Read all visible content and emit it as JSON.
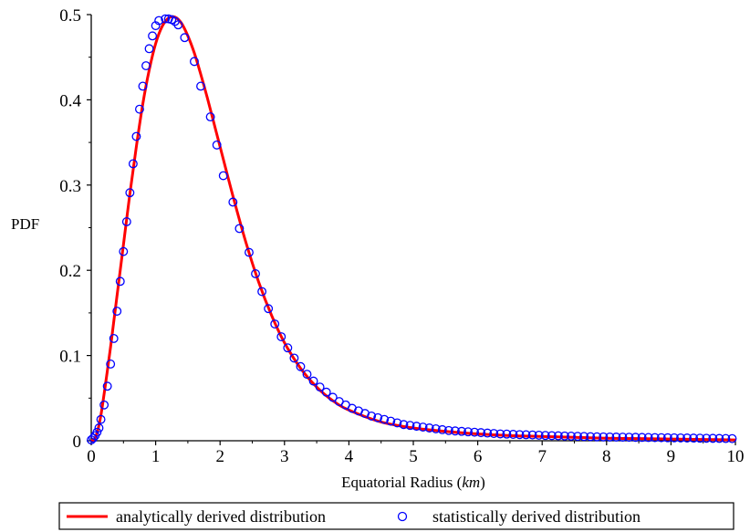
{
  "chart_data": {
    "type": "line",
    "title": "",
    "xlabel": "Equatorial Radius",
    "xlabel_unit": "km",
    "ylabel": "PDF",
    "xlim": [
      0,
      10
    ],
    "ylim": [
      0,
      0.5
    ],
    "xticks": [
      "0",
      "1",
      "2",
      "3",
      "4",
      "5",
      "6",
      "7",
      "8",
      "9",
      "10"
    ],
    "yticks": [
      "0",
      "0.1",
      "0.2",
      "0.3",
      "0.4",
      "0.5"
    ],
    "grid": false,
    "legend_position": "bottom",
    "colors": {
      "analytic": "#ff0000",
      "statistic": "#0000ff"
    },
    "series": [
      {
        "name": "analytically derived distribution",
        "style": "line",
        "x": [
          0,
          0.05,
          0.1,
          0.15,
          0.2,
          0.25,
          0.3,
          0.35,
          0.4,
          0.5,
          0.6,
          0.7,
          0.8,
          0.9,
          1.0,
          1.1,
          1.2,
          1.3,
          1.4,
          1.5,
          1.6,
          1.7,
          1.8,
          1.9,
          2.0,
          2.2,
          2.4,
          2.6,
          2.8,
          3.0,
          3.25,
          3.5,
          3.75,
          4.0,
          4.5,
          5.0,
          5.5,
          6.0,
          6.5,
          7.0,
          7.5,
          8.0,
          8.5,
          9.0,
          9.5,
          10.0
        ],
        "y": [
          0,
          0.002,
          0.012,
          0.03,
          0.055,
          0.082,
          0.11,
          0.14,
          0.17,
          0.23,
          0.29,
          0.345,
          0.395,
          0.435,
          0.466,
          0.486,
          0.496,
          0.497,
          0.49,
          0.475,
          0.455,
          0.43,
          0.403,
          0.374,
          0.345,
          0.287,
          0.233,
          0.186,
          0.147,
          0.115,
          0.085,
          0.063,
          0.047,
          0.036,
          0.022,
          0.015,
          0.011,
          0.008,
          0.006,
          0.005,
          0.004,
          0.003,
          0.0025,
          0.002,
          0.0015,
          0.001
        ]
      },
      {
        "name": "statistically derived distribution",
        "style": "markers",
        "x": [
          0,
          0.03,
          0.06,
          0.09,
          0.12,
          0.15,
          0.2,
          0.25,
          0.3,
          0.35,
          0.4,
          0.45,
          0.5,
          0.55,
          0.6,
          0.65,
          0.7,
          0.75,
          0.8,
          0.85,
          0.9,
          0.95,
          1.0,
          1.05,
          1.15,
          1.2,
          1.25,
          1.3,
          1.35,
          1.45,
          1.6,
          1.7,
          1.85,
          1.95,
          2.05,
          2.2,
          2.3,
          2.45,
          2.55,
          2.65,
          2.75,
          2.85,
          2.95,
          3.05,
          3.15,
          3.25,
          3.35,
          3.45,
          3.55,
          3.65,
          3.75,
          3.85,
          3.95,
          4.05,
          4.15,
          4.25,
          4.35,
          4.45,
          4.55,
          4.65,
          4.75,
          4.85,
          4.95,
          5.05,
          5.15,
          5.25,
          5.35,
          5.45,
          5.55,
          5.65,
          5.75,
          5.85,
          5.95,
          6.05,
          6.15,
          6.25,
          6.35,
          6.45,
          6.55,
          6.65,
          6.75,
          6.85,
          6.95,
          7.05,
          7.15,
          7.25,
          7.35,
          7.45,
          7.55,
          7.65,
          7.75,
          7.85,
          7.95,
          8.05,
          8.15,
          8.25,
          8.35,
          8.45,
          8.55,
          8.65,
          8.75,
          8.85,
          8.95,
          9.05,
          9.15,
          9.25,
          9.35,
          9.45,
          9.55,
          9.65,
          9.75,
          9.85,
          9.95
        ],
        "y": [
          0.001,
          0.003,
          0.006,
          0.01,
          0.015,
          0.025,
          0.042,
          0.064,
          0.09,
          0.12,
          0.152,
          0.187,
          0.222,
          0.257,
          0.291,
          0.325,
          0.357,
          0.389,
          0.416,
          0.44,
          0.46,
          0.475,
          0.487,
          0.493,
          0.495,
          0.495,
          0.494,
          0.492,
          0.488,
          0.473,
          0.445,
          0.416,
          0.38,
          0.347,
          0.311,
          0.28,
          0.249,
          0.221,
          0.196,
          0.175,
          0.155,
          0.137,
          0.122,
          0.109,
          0.097,
          0.087,
          0.078,
          0.07,
          0.063,
          0.057,
          0.051,
          0.046,
          0.042,
          0.038,
          0.035,
          0.032,
          0.029,
          0.027,
          0.025,
          0.023,
          0.021,
          0.019,
          0.018,
          0.017,
          0.016,
          0.015,
          0.014,
          0.013,
          0.012,
          0.0115,
          0.011,
          0.0105,
          0.01,
          0.0095,
          0.009,
          0.0085,
          0.008,
          0.0078,
          0.0075,
          0.0072,
          0.007,
          0.0068,
          0.0065,
          0.0062,
          0.006,
          0.0058,
          0.0056,
          0.0054,
          0.0052,
          0.005,
          0.0048,
          0.0046,
          0.0045,
          0.0044,
          0.0043,
          0.0042,
          0.0041,
          0.004,
          0.0039,
          0.0038,
          0.0037,
          0.0036,
          0.0035,
          0.0034,
          0.0033,
          0.0032,
          0.0031,
          0.003,
          0.0029,
          0.0028,
          0.0027,
          0.0026,
          0.0025
        ]
      }
    ]
  }
}
